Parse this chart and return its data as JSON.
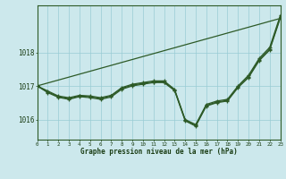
{
  "title": "Graphe pression niveau de la mer (hPa)",
  "background_color": "#cce8ec",
  "grid_color": "#99ccd4",
  "line_color": "#2d5a27",
  "text_color": "#1a3d14",
  "ylim": [
    1015.4,
    1019.4
  ],
  "yticks": [
    1016,
    1017,
    1018
  ],
  "xlim": [
    0,
    23
  ],
  "hours": [
    0,
    1,
    2,
    3,
    4,
    5,
    6,
    7,
    8,
    9,
    10,
    11,
    12,
    13,
    14,
    15,
    16,
    17,
    18,
    19,
    20,
    21,
    22,
    23
  ],
  "series_main": [
    1017.0,
    1016.85,
    1016.7,
    1016.65,
    1016.72,
    1016.7,
    1016.65,
    1016.72,
    1016.95,
    1017.05,
    1017.1,
    1017.15,
    1017.15,
    1016.9,
    1016.0,
    1015.85,
    1016.45,
    1016.55,
    1016.6,
    1017.0,
    1017.32,
    1017.82,
    1018.15,
    1019.1
  ],
  "series_b": [
    1017.0,
    1016.82,
    1016.68,
    1016.62,
    1016.7,
    1016.68,
    1016.63,
    1016.7,
    1016.93,
    1017.02,
    1017.08,
    1017.12,
    1017.12,
    1016.88,
    1015.98,
    1015.82,
    1016.42,
    1016.52,
    1016.57,
    1016.97,
    1017.28,
    1017.78,
    1018.1,
    1019.05
  ],
  "series_c": [
    1017.0,
    1016.8,
    1016.66,
    1016.6,
    1016.68,
    1016.65,
    1016.6,
    1016.67,
    1016.9,
    1017.0,
    1017.05,
    1017.1,
    1017.1,
    1016.86,
    1015.96,
    1015.8,
    1016.4,
    1016.5,
    1016.55,
    1016.95,
    1017.25,
    1017.75,
    1018.07,
    1019.02
  ],
  "series_straight": [
    1017.0,
    1017.088,
    1017.175,
    1017.262,
    1017.35,
    1017.437,
    1017.525,
    1017.612,
    1017.7,
    1017.787,
    1017.875,
    1017.962,
    1018.05,
    1018.137,
    1018.225,
    1018.312,
    1018.4,
    1018.487,
    1018.575,
    1018.662,
    1018.75,
    1018.837,
    1018.925,
    1019.012
  ]
}
